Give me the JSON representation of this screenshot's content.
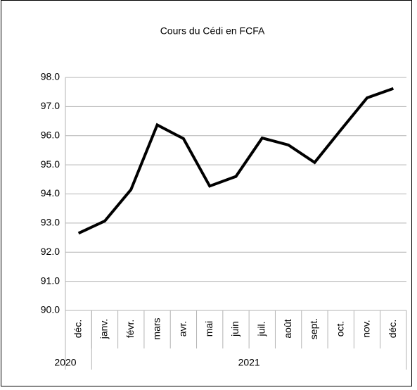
{
  "chart_data": {
    "type": "line",
    "title": "Cours du Cédi en FCFA",
    "categories": [
      "déc.",
      "janv.",
      "févr.",
      "mars",
      "avr.",
      "mai",
      "juin",
      "juil.",
      "août",
      "sept.",
      "oct.",
      "nov.",
      "déc."
    ],
    "category_groups": [
      {
        "label": "2020",
        "size": 1
      },
      {
        "label": "2021",
        "size": 12
      }
    ],
    "series": [
      {
        "name": "Cours du Cédi en FCFA",
        "color": "#000000",
        "values": [
          92.65,
          93.07,
          94.15,
          96.37,
          95.9,
          94.27,
          94.6,
          95.92,
          95.68,
          95.08,
          96.2,
          97.3,
          97.62
        ]
      }
    ],
    "ylim": [
      90,
      98
    ],
    "yticks": [
      {
        "value": 90,
        "label": "90.0"
      },
      {
        "value": 91,
        "label": "91.0"
      },
      {
        "value": 92,
        "label": "92.0"
      },
      {
        "value": 93,
        "label": "93.0"
      },
      {
        "value": 94,
        "label": "94.0"
      },
      {
        "value": 95,
        "label": "95.0"
      },
      {
        "value": 96,
        "label": "96.0"
      },
      {
        "value": 97,
        "label": "97.0"
      },
      {
        "value": 98,
        "label": "98.0"
      }
    ],
    "grid": true,
    "legend": false
  }
}
